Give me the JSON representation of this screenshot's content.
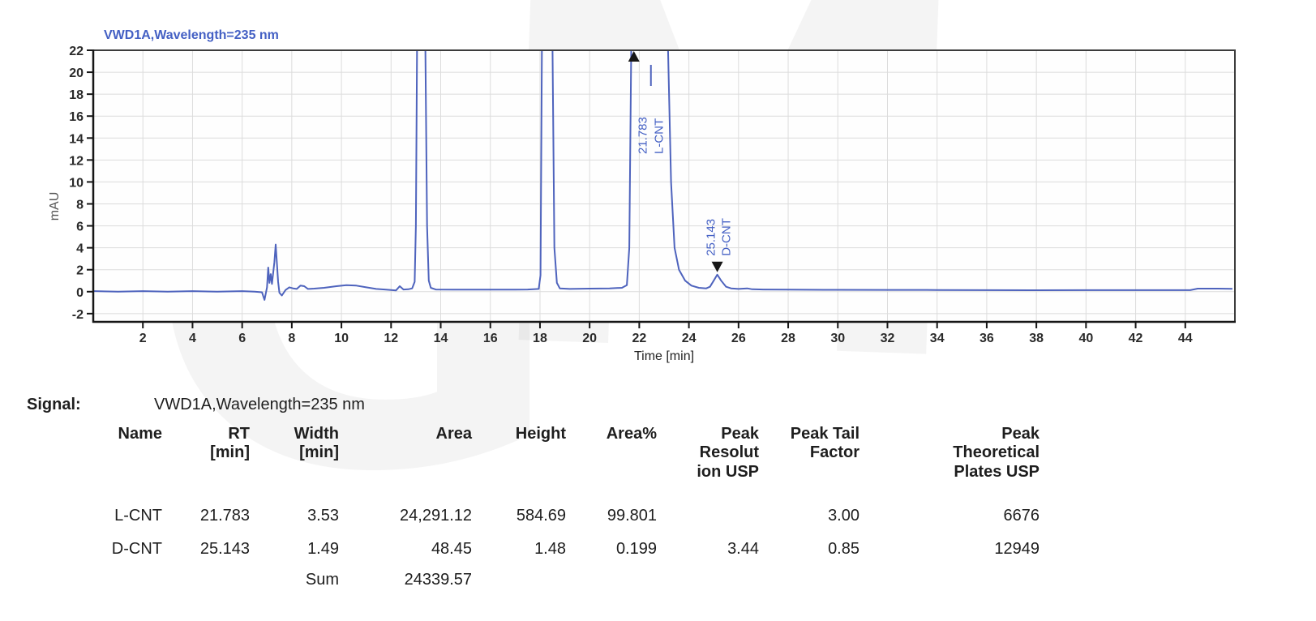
{
  "watermark": {
    "letter1": "G",
    "letter2": "M"
  },
  "signal": {
    "label": "Signal:",
    "value": "VWD1A,Wavelength=235 nm"
  },
  "chart_data": {
    "type": "line",
    "title": "VWD1A,Wavelength=235 nm",
    "xlabel": "Time [min]",
    "ylabel": "mAU",
    "xlim": [
      0,
      46
    ],
    "ylim": [
      -2.75,
      22
    ],
    "xticks": [
      2,
      4,
      6,
      8,
      10,
      12,
      14,
      16,
      18,
      20,
      22,
      24,
      26,
      28,
      30,
      32,
      34,
      36,
      38,
      40,
      42,
      44
    ],
    "yticks": [
      -2,
      0,
      2,
      4,
      6,
      8,
      10,
      12,
      14,
      16,
      18,
      20,
      22
    ],
    "grid": true,
    "legend": "none",
    "line_color": "#4e63bd",
    "title_color": "#4460c4",
    "annotation_color": "#4460c4",
    "marker_color": "#161616",
    "series": [
      {
        "name": "VWD1A,Wavelength=235 nm",
        "points": [
          [
            0,
            0.05
          ],
          [
            1,
            0.0
          ],
          [
            2,
            0.05
          ],
          [
            3,
            0.0
          ],
          [
            4,
            0.05
          ],
          [
            5,
            0.0
          ],
          [
            6,
            0.05
          ],
          [
            6.5,
            0.0
          ],
          [
            6.8,
            -0.05
          ],
          [
            6.9,
            -0.75
          ],
          [
            7.0,
            0.4
          ],
          [
            7.05,
            2.2
          ],
          [
            7.1,
            0.8
          ],
          [
            7.15,
            1.6
          ],
          [
            7.2,
            0.7
          ],
          [
            7.3,
            2.7
          ],
          [
            7.35,
            4.3
          ],
          [
            7.45,
            0.9
          ],
          [
            7.5,
            -0.1
          ],
          [
            7.6,
            -0.35
          ],
          [
            7.75,
            0.15
          ],
          [
            7.9,
            0.4
          ],
          [
            8.05,
            0.3
          ],
          [
            8.2,
            0.25
          ],
          [
            8.35,
            0.55
          ],
          [
            8.5,
            0.5
          ],
          [
            8.65,
            0.25
          ],
          [
            8.9,
            0.28
          ],
          [
            9.3,
            0.35
          ],
          [
            9.8,
            0.5
          ],
          [
            10.2,
            0.6
          ],
          [
            10.6,
            0.55
          ],
          [
            11.0,
            0.4
          ],
          [
            11.4,
            0.25
          ],
          [
            11.8,
            0.18
          ],
          [
            12.2,
            0.12
          ],
          [
            12.35,
            0.5
          ],
          [
            12.5,
            0.2
          ],
          [
            12.7,
            0.22
          ],
          [
            12.85,
            0.3
          ],
          [
            12.95,
            0.9
          ],
          [
            13.0,
            6
          ],
          [
            13.05,
            23
          ],
          [
            13.38,
            23
          ],
          [
            13.45,
            6
          ],
          [
            13.52,
            1.0
          ],
          [
            13.6,
            0.35
          ],
          [
            13.8,
            0.2
          ],
          [
            14.5,
            0.18
          ],
          [
            15.5,
            0.18
          ],
          [
            16.5,
            0.18
          ],
          [
            17.5,
            0.2
          ],
          [
            17.95,
            0.25
          ],
          [
            18.02,
            1.5
          ],
          [
            18.08,
            23
          ],
          [
            18.5,
            23
          ],
          [
            18.58,
            4
          ],
          [
            18.68,
            0.8
          ],
          [
            18.8,
            0.3
          ],
          [
            19.2,
            0.25
          ],
          [
            20.0,
            0.28
          ],
          [
            20.8,
            0.3
          ],
          [
            21.3,
            0.35
          ],
          [
            21.5,
            0.6
          ],
          [
            21.6,
            4
          ],
          [
            21.68,
            23
          ],
          [
            23.15,
            23
          ],
          [
            23.28,
            10
          ],
          [
            23.42,
            4.0
          ],
          [
            23.6,
            2.0
          ],
          [
            23.85,
            1.0
          ],
          [
            24.1,
            0.55
          ],
          [
            24.4,
            0.35
          ],
          [
            24.7,
            0.3
          ],
          [
            24.85,
            0.45
          ],
          [
            25.0,
            1.0
          ],
          [
            25.143,
            1.55
          ],
          [
            25.3,
            1.0
          ],
          [
            25.5,
            0.45
          ],
          [
            25.7,
            0.3
          ],
          [
            26.0,
            0.25
          ],
          [
            26.35,
            0.3
          ],
          [
            26.55,
            0.22
          ],
          [
            27.0,
            0.2
          ],
          [
            28,
            0.18
          ],
          [
            30,
            0.17
          ],
          [
            32,
            0.16
          ],
          [
            34,
            0.15
          ],
          [
            36,
            0.14
          ],
          [
            38,
            0.13
          ],
          [
            40,
            0.14
          ],
          [
            42,
            0.14
          ],
          [
            44.2,
            0.14
          ],
          [
            44.5,
            0.28
          ],
          [
            45.3,
            0.28
          ],
          [
            45.9,
            0.26
          ]
        ]
      }
    ],
    "annotations": [
      {
        "time": 21.783,
        "rt_label": "21.783",
        "name": "L-CNT",
        "marker": "top",
        "apex_value": 22
      },
      {
        "time": 25.143,
        "rt_label": "25.143",
        "name": "D-CNT",
        "marker": "apex",
        "apex_value": 1.55
      }
    ]
  },
  "table": {
    "headers": [
      "Name",
      "RT\n[min]",
      "Width\n[min]",
      "Area",
      "Height",
      "Area%",
      "Peak\nResolut\nion USP",
      "Peak Tail\nFactor",
      "Peak\nTheoretical\nPlates USP"
    ],
    "rows": [
      [
        "L-CNT",
        "21.783",
        "3.53",
        "24,291.12",
        "584.69",
        "99.801",
        "",
        "3.00",
        "6676"
      ],
      [
        "D-CNT",
        "25.143",
        "1.49",
        "48.45",
        "1.48",
        "0.199",
        "3.44",
        "0.85",
        "12949"
      ]
    ],
    "sum_label": "Sum",
    "sum_value": "24339.57"
  }
}
